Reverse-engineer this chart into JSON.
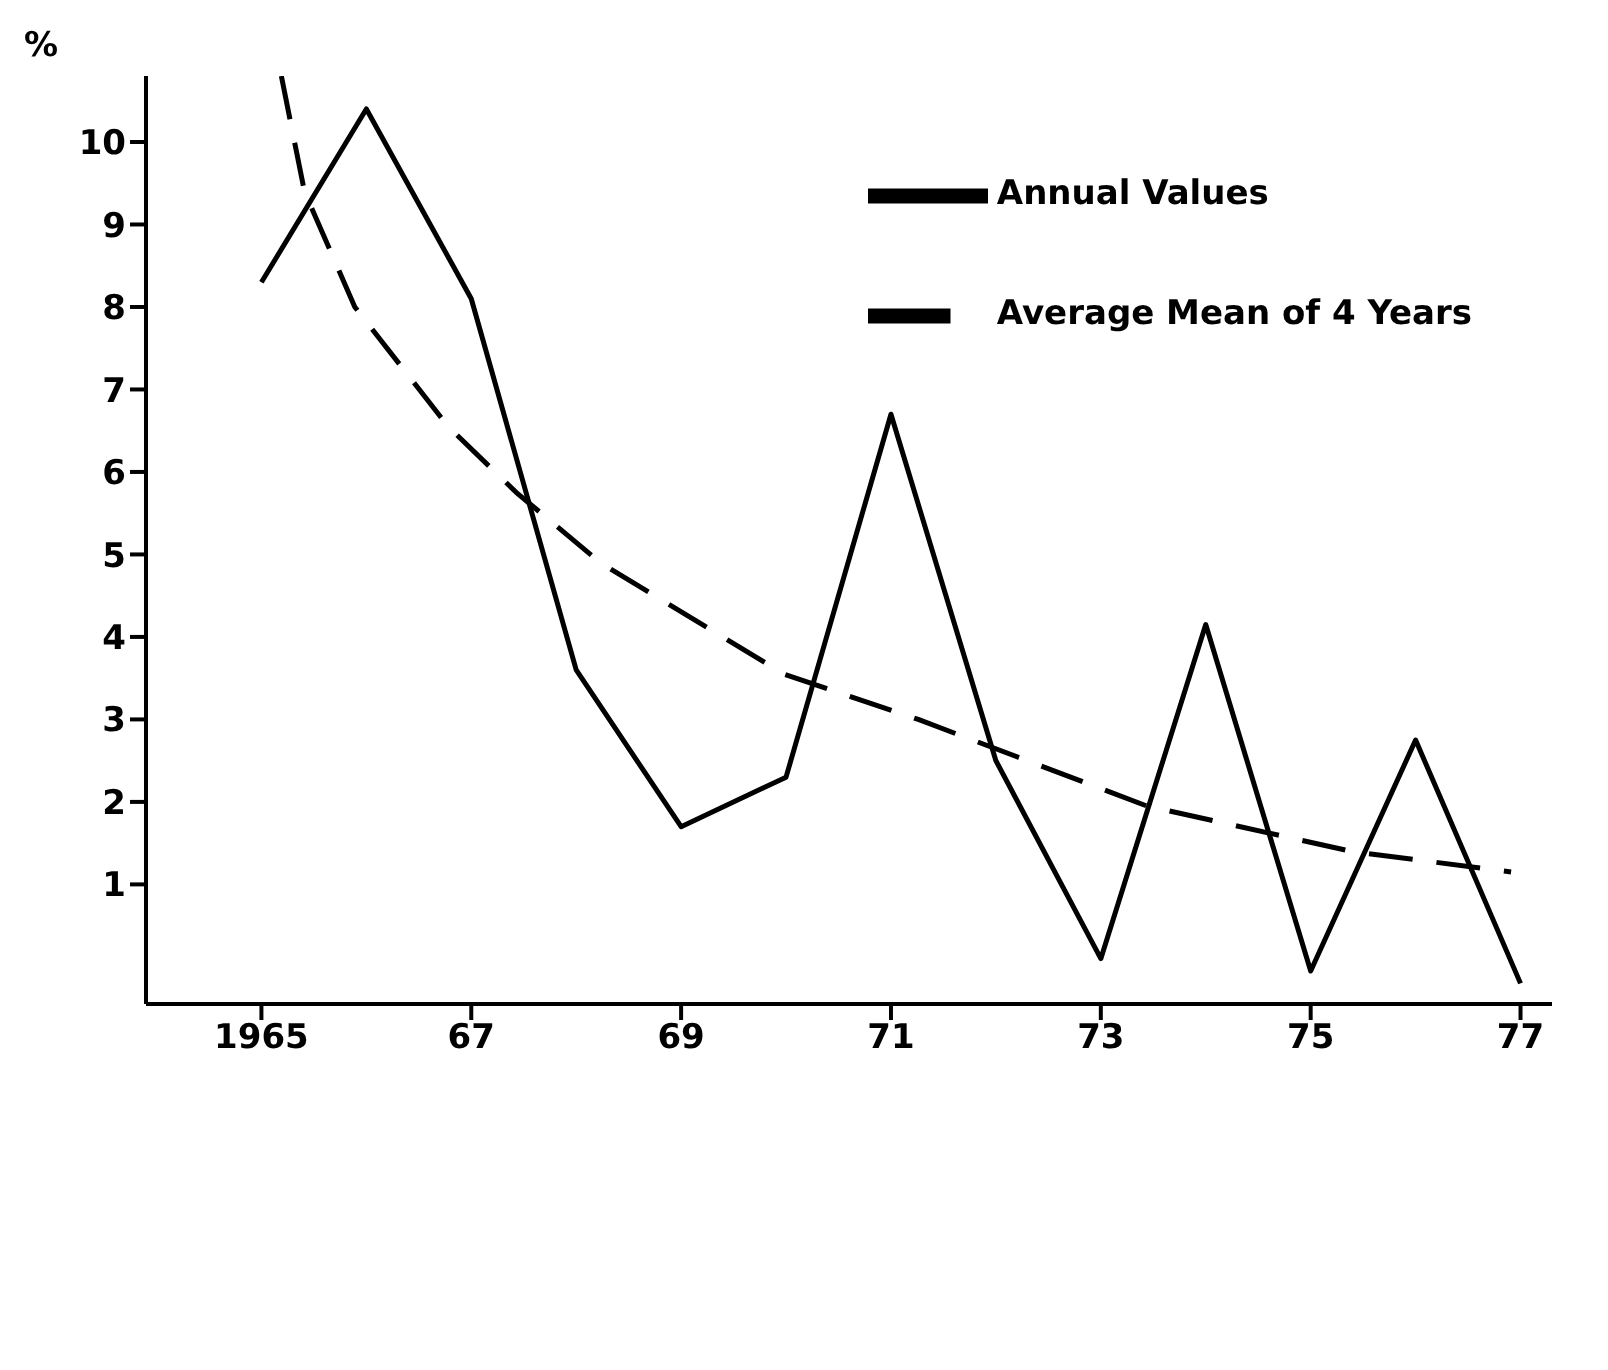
{
  "chart_data": {
    "type": "line",
    "ylabel": "%",
    "xlim": [
      1963.9,
      1977.3
    ],
    "ylim": [
      -0.45,
      10.8
    ],
    "xticks": [
      {
        "value": 1965,
        "label": "1965"
      },
      {
        "value": 1967,
        "label": "67"
      },
      {
        "value": 1969,
        "label": "69"
      },
      {
        "value": 1971,
        "label": "71"
      },
      {
        "value": 1973,
        "label": "73"
      },
      {
        "value": 1975,
        "label": "75"
      },
      {
        "value": 1977,
        "label": "77"
      }
    ],
    "yticks": [
      1,
      2,
      3,
      4,
      5,
      6,
      7,
      8,
      9,
      10
    ],
    "legend": "top right",
    "marker": "none",
    "series": [
      {
        "name": "Annual Values",
        "color": "#000000",
        "line_style": "solid",
        "x": [
          1965,
          1966,
          1967,
          1968,
          1969,
          1970,
          1971,
          1972,
          1973,
          1974,
          1975,
          1976,
          1977
        ],
        "values": [
          8.3,
          10.4,
          8.1,
          3.6,
          1.7,
          2.3,
          6.7,
          2.5,
          0.1,
          4.15,
          -0.05,
          2.75,
          -0.2
        ]
      },
      {
        "name": "Average Mean of 4 Years",
        "color": "#000000",
        "line_style": "dashed",
        "x": [
          1965.19,
          1965.41,
          1965.89,
          1966.78,
          1967.43,
          1968.23,
          1969.98,
          1971.26,
          1973.44,
          1975.39,
          1976.91
        ],
        "values": [
          10.8,
          9.4,
          8.0,
          6.55,
          5.75,
          4.9,
          3.55,
          3.0,
          1.95,
          1.4,
          1.15
        ]
      }
    ]
  }
}
